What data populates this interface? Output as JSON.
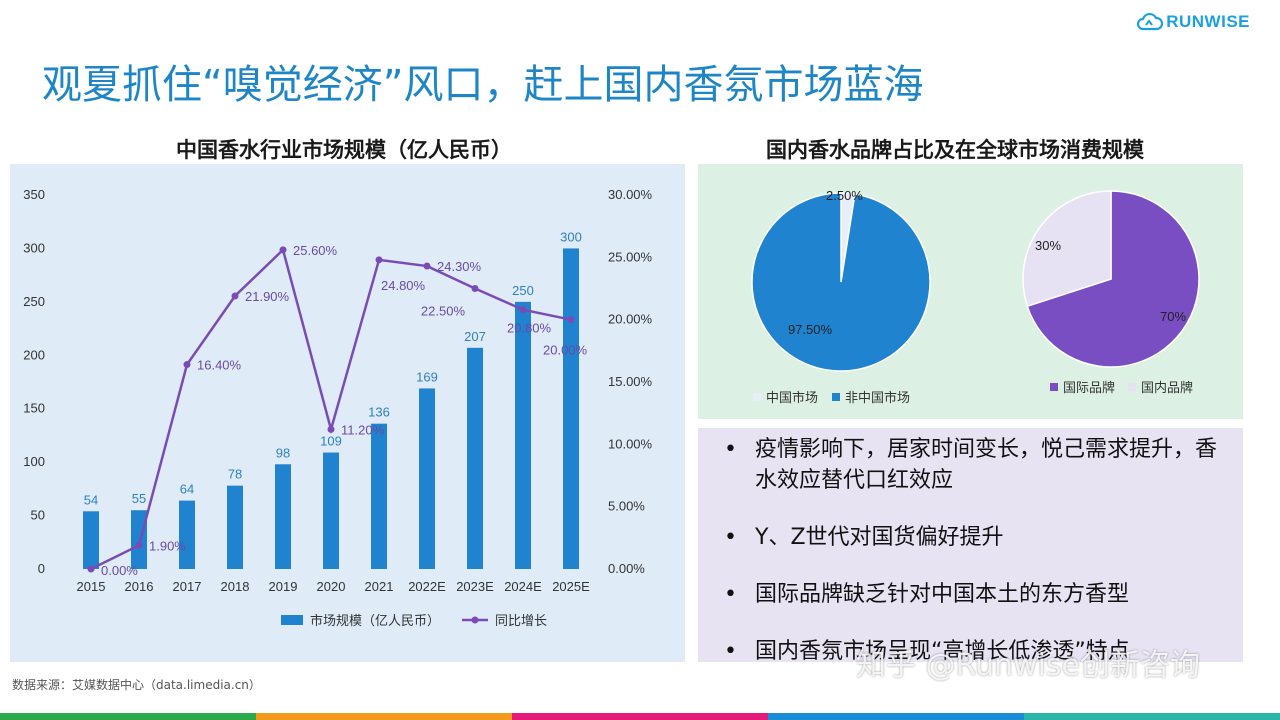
{
  "logo": {
    "text": "RUNWISE",
    "icon": "cloud-logo-icon"
  },
  "page_title": "观夏抓住“嗅觉经济”风口，赶上国内香氛市场蓝海",
  "colors": {
    "title": "#1e86c6",
    "bar": "#1f83cf",
    "line": "#7b4bb5",
    "pie_blue": "#1f83cf",
    "pie_purple": "#7a4ec3",
    "pie_light": "#e6e1f3",
    "pie_light2": "#e8eef8"
  },
  "chart_data": [
    {
      "type": "bar",
      "title": "中国香水行业市场规模（亿人民币）",
      "categories": [
        "2015",
        "2016",
        "2017",
        "2018",
        "2019",
        "2020",
        "2021",
        "2022E",
        "2023E",
        "2024E",
        "2025E"
      ],
      "series": [
        {
          "name": "市场规模（亿人民币）",
          "type": "bar",
          "axis": "left",
          "values": [
            54,
            55,
            64,
            78,
            98,
            109,
            136,
            169,
            207,
            250,
            300
          ]
        },
        {
          "name": "同比增长",
          "type": "line",
          "axis": "right",
          "values": [
            0.0,
            1.9,
            16.4,
            21.9,
            25.6,
            11.2,
            24.8,
            24.3,
            22.5,
            20.8,
            20.0
          ],
          "labels": [
            "0.00%",
            "1.90%",
            "16.40%",
            "21.90%",
            "25.60%",
            "11.20%",
            "24.80%",
            "24.30%",
            "22.50%",
            "20.80%",
            "20.00%"
          ]
        }
      ],
      "y_left": {
        "min": 0,
        "max": 350,
        "ticks": [
          "0",
          "50",
          "100",
          "150",
          "200",
          "250",
          "300",
          "350"
        ]
      },
      "y_right": {
        "min": 0,
        "max": 30,
        "ticks": [
          "0.00%",
          "5.00%",
          "10.00%",
          "15.00%",
          "20.00%",
          "25.00%",
          "30.00%"
        ]
      },
      "grid": false,
      "legend_position": "bottom"
    },
    {
      "type": "pie",
      "title": "国内香水品牌占比及在全球市场消费规模",
      "slices": [
        {
          "label": "中国市场",
          "value": 2.5,
          "text": "2.50%"
        },
        {
          "label": "非中国市场",
          "value": 97.5,
          "text": "97.50%"
        }
      ],
      "legend_position": "bottom"
    },
    {
      "type": "pie",
      "slices": [
        {
          "label": "国际品牌",
          "value": 70,
          "text": "70%"
        },
        {
          "label": "国内品牌",
          "value": 30,
          "text": "30%"
        }
      ],
      "legend_position": "bottom"
    }
  ],
  "bullets": [
    "疫情影响下，居家时间变长，悦己需求提升，香水效应替代口红效应",
    "Y、Z世代对国货偏好提升",
    "国际品牌缺乏针对中国本土的东方香型",
    "国内香氛市场呈现“高增长低渗透”特点"
  ],
  "source": "数据来源：艾媒数据中心（data.limedia.cn）",
  "watermark": "知乎 @Runwise创新咨询",
  "footer_stripes": [
    "#2daa4a",
    "#f39a1e",
    "#e6197a",
    "#1a8bd6",
    "#2ab3a9"
  ]
}
